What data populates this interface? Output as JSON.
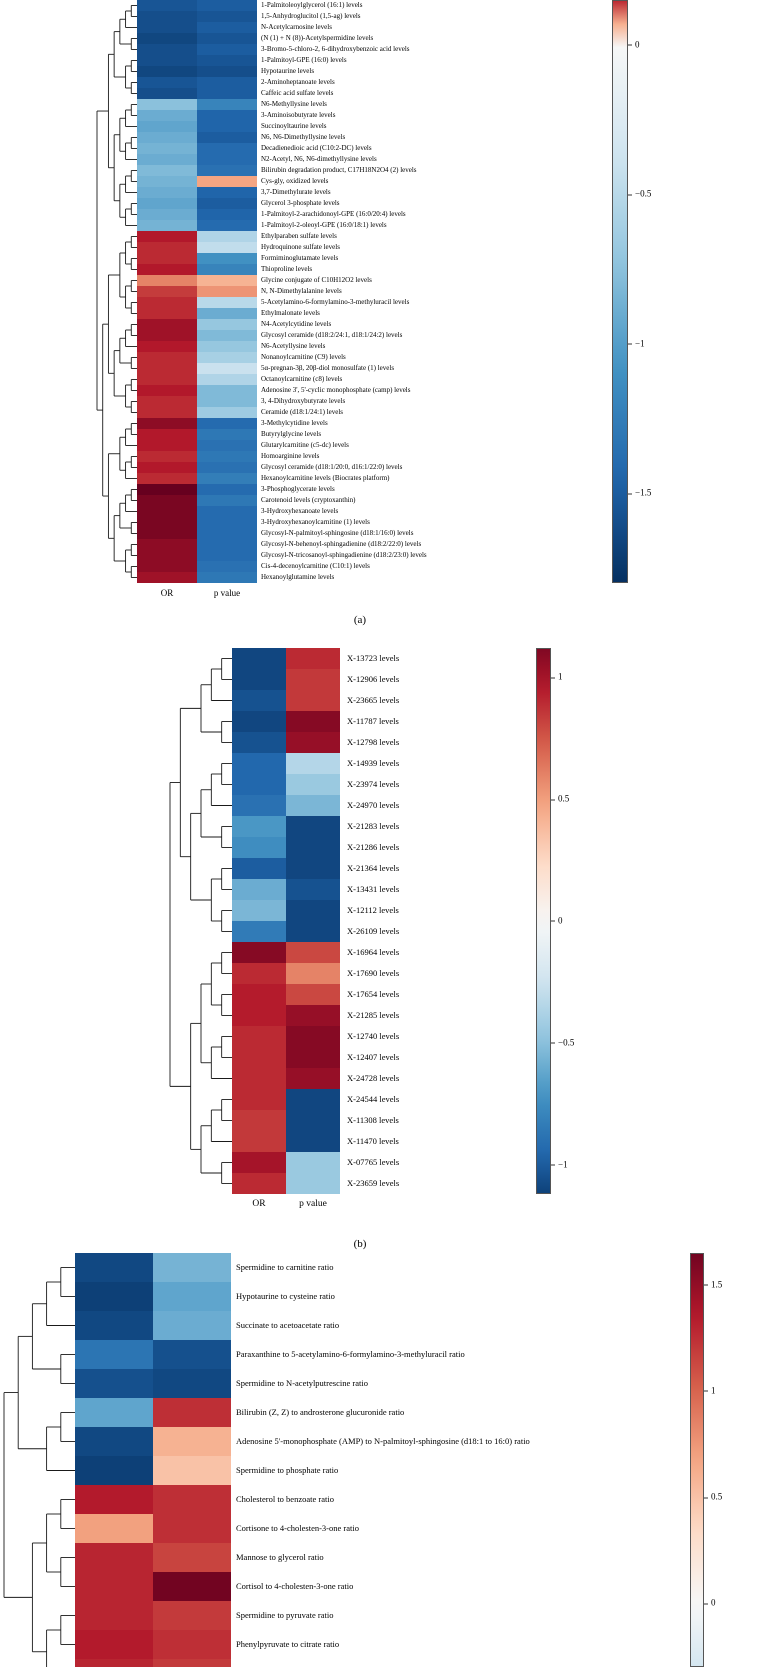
{
  "colors": {
    "diverging_stops": [
      "#053061",
      "#2166ac",
      "#4393c3",
      "#92c5de",
      "#d1e5f0",
      "#f7f7f7",
      "#fddbc7",
      "#f4a582",
      "#d6604c",
      "#b2182b",
      "#67001f"
    ],
    "background": "#ffffff"
  },
  "chart_data": [
    {
      "type": "heatmap",
      "panel": "a",
      "caption": "(a)",
      "columns": [
        "OR",
        "p value"
      ],
      "legend_position": "right",
      "colormap": {
        "pos_max": 0.2,
        "neg_max": 1.8
      },
      "colorbar": {
        "top_value": 0.15,
        "bottom_value": -1.8,
        "ticks": [
          {
            "label": "0",
            "value": 0
          },
          {
            "label": "−0.5",
            "value": -0.5
          },
          {
            "label": "−1",
            "value": -1
          },
          {
            "label": "−1.5",
            "value": -1.5
          }
        ]
      },
      "rows": [
        {
          "label": "1-Palmitoleoylglycerol (16:1) levels",
          "or": -1.55,
          "p": -1.5
        },
        {
          "label": "1,5-Anhydroglucitol (1,5-ag) levels",
          "or": -1.6,
          "p": -1.55
        },
        {
          "label": "N-Acetylcarnosine levels",
          "or": -1.6,
          "p": -1.5
        },
        {
          "label": "(N (1) + N (8))-Acetylspermidine levels",
          "or": -1.65,
          "p": -1.55
        },
        {
          "label": "3-Bromo-5-chloro-2, 6-dihydroxybenzoic acid levels",
          "or": -1.6,
          "p": -1.5
        },
        {
          "label": "1-Palmitoyl-GPE (16:0) levels",
          "or": -1.6,
          "p": -1.55
        },
        {
          "label": "Hypotaurine levels",
          "or": -1.65,
          "p": -1.6
        },
        {
          "label": "2-Aminoheptanoate levels",
          "or": -1.55,
          "p": -1.5
        },
        {
          "label": "Caffeic acid sulfate levels",
          "or": -1.6,
          "p": -1.5
        },
        {
          "label": "N6-Methyllysine levels",
          "or": -0.75,
          "p": -1.2
        },
        {
          "label": "3-Aminoisobutyrate levels",
          "or": -0.9,
          "p": -1.45
        },
        {
          "label": "Succinoyltaurine levels",
          "or": -0.95,
          "p": -1.45
        },
        {
          "label": "N6, N6-Dimethyllysine levels",
          "or": -0.9,
          "p": -1.5
        },
        {
          "label": "Decadienedioic acid (C10:2-DC) levels",
          "or": -0.85,
          "p": -1.4
        },
        {
          "label": "N2-Acetyl, N6, N6-dimethyllysine levels",
          "or": -0.9,
          "p": -1.4
        },
        {
          "label": "Bilirubin degradation product, C17H18N2O4 (2) levels",
          "or": -0.8,
          "p": -1.35
        },
        {
          "label": "Cys-gly, oxidized levels",
          "or": -0.85,
          "p": 0.08
        },
        {
          "label": "3,7-Dimethylurate levels",
          "or": -0.9,
          "p": -1.45
        },
        {
          "label": "Glycerol 3-phosphate levels",
          "or": -0.95,
          "p": -1.5
        },
        {
          "label": "1-Palmitoyl-2-arachidonoyl-GPE (16:0/20:4) levels",
          "or": -0.9,
          "p": -1.45
        },
        {
          "label": "1-Palmitoyl-2-oleoyl-GPE (16:0/18:1) levels",
          "or": -0.85,
          "p": -1.4
        },
        {
          "label": "Ethylparaben sulfate levels",
          "or": 0.16,
          "p": -0.55
        },
        {
          "label": "Hydroquinone sulfate levels",
          "or": 0.15,
          "p": -0.45
        },
        {
          "label": "Formiminoglutamate levels",
          "or": 0.15,
          "p": -1.1
        },
        {
          "label": "Thioproline levels",
          "or": 0.16,
          "p": -1.2
        },
        {
          "label": "Glycine conjugate of C10H12O2 levels",
          "or": 0.1,
          "p": 0.07
        },
        {
          "label": "N, N-Dimethylalanine levels",
          "or": 0.14,
          "p": 0.09
        },
        {
          "label": "5-Acetylamino-6-formylamino-3-methyluracil levels",
          "or": 0.15,
          "p": -0.5
        },
        {
          "label": "Ethylmalonate levels",
          "or": 0.15,
          "p": -0.9
        },
        {
          "label": "N4-Acetylcytidine levels",
          "or": 0.17,
          "p": -0.7
        },
        {
          "label": "Glycosyl ceramide (d18:2/24:1, d18:1/24:2) levels",
          "or": 0.17,
          "p": -0.8
        },
        {
          "label": "N6-Acetyllysine levels",
          "or": 0.16,
          "p": -0.7
        },
        {
          "label": "Nonanoylcarnitine (C9) levels",
          "or": 0.15,
          "p": -0.6
        },
        {
          "label": "5α-pregnan-3β, 20β-diol monosulfate (1) levels",
          "or": 0.15,
          "p": -0.4
        },
        {
          "label": "Octanoylcarnitine (c8) levels",
          "or": 0.15,
          "p": -0.55
        },
        {
          "label": "Adenosine 3', 5'-cyclic monophosphate (camp) levels",
          "or": 0.16,
          "p": -0.8
        },
        {
          "label": "3, 4-Dihydroxybutyrate levels",
          "or": 0.15,
          "p": -0.8
        },
        {
          "label": "Ceramide (d18:1/24:1) levels",
          "or": 0.15,
          "p": -0.65
        },
        {
          "label": "3-Methylcytidine levels",
          "or": 0.18,
          "p": -1.4
        },
        {
          "label": "Butyrylglycine levels",
          "or": 0.16,
          "p": -1.3
        },
        {
          "label": "Glutarylcarnitine (c5-dc) levels",
          "or": 0.16,
          "p": -1.35
        },
        {
          "label": "Homoarginine levels",
          "or": 0.15,
          "p": -1.3
        },
        {
          "label": "Glycosyl ceramide (d18:1/20:0, d16:1/22:0) levels",
          "or": 0.16,
          "p": -1.35
        },
        {
          "label": "Hexanoylcarnitine levels (Biocrates platform)",
          "or": 0.15,
          "p": -1.25
        },
        {
          "label": "3-Phosphoglycerate levels",
          "or": 0.2,
          "p": -1.4
        },
        {
          "label": "Carotenoid levels (cryptoxanthin)",
          "or": 0.19,
          "p": -1.3
        },
        {
          "label": "3-Hydroxyhexanoate levels",
          "or": 0.19,
          "p": -1.4
        },
        {
          "label": "3-Hydroxyhexanoylcarnitine (1) levels",
          "or": 0.19,
          "p": -1.4
        },
        {
          "label": "Glycosyl-N-palmitoyl-sphingosine (d18:1/16:0) levels",
          "or": 0.19,
          "p": -1.4
        },
        {
          "label": "Glycosyl-N-behenoyl-sphingadienine (d18:2/22:0) levels",
          "or": 0.18,
          "p": -1.4
        },
        {
          "label": "Glycosyl-N-tricosanoyl-sphingadienine (d18:2/23:0) levels",
          "or": 0.18,
          "p": -1.4
        },
        {
          "label": "Cis-4-decenoylcarnitine (C10:1) levels",
          "or": 0.18,
          "p": -1.35
        },
        {
          "label": "Hexanoylglutamine levels",
          "or": 0.17,
          "p": -1.3
        }
      ]
    },
    {
      "type": "heatmap",
      "panel": "b",
      "caption": "(b)",
      "columns": [
        "OR",
        "p value"
      ],
      "legend_position": "right",
      "colormap": {
        "pos_max": 1.2,
        "neg_max": 1.2
      },
      "colorbar": {
        "top_value": 1.12,
        "bottom_value": -1.12,
        "ticks": [
          {
            "label": "1",
            "value": 1
          },
          {
            "label": "0.5",
            "value": 0.5
          },
          {
            "label": "0",
            "value": 0
          },
          {
            "label": "−0.5",
            "value": -0.5
          },
          {
            "label": "−1",
            "value": -1
          }
        ]
      },
      "rows": [
        {
          "label": "X-13723 levels",
          "or": -1.1,
          "p": 0.9
        },
        {
          "label": "X-12906 levels",
          "or": -1.1,
          "p": 0.85
        },
        {
          "label": "X-23665 levels",
          "or": -1.05,
          "p": 0.85
        },
        {
          "label": "X-11787 levels",
          "or": -1.1,
          "p": 1.1
        },
        {
          "label": "X-12798 levels",
          "or": -1.05,
          "p": 1.05
        },
        {
          "label": "X-14939 levels",
          "or": -0.95,
          "p": -0.35
        },
        {
          "label": "X-23974 levels",
          "or": -0.95,
          "p": -0.45
        },
        {
          "label": "X-24970 levels",
          "or": -0.9,
          "p": -0.55
        },
        {
          "label": "X-21283 levels",
          "or": -0.7,
          "p": -1.1
        },
        {
          "label": "X-21286 levels",
          "or": -0.75,
          "p": -1.1
        },
        {
          "label": "X-21364 levels",
          "or": -1.0,
          "p": -1.1
        },
        {
          "label": "X-13431 levels",
          "or": -0.6,
          "p": -1.05
        },
        {
          "label": "X-12112 levels",
          "or": -0.55,
          "p": -1.1
        },
        {
          "label": "X-26109 levels",
          "or": -0.85,
          "p": -1.1
        },
        {
          "label": "X-16964 levels",
          "or": 1.1,
          "p": 0.8
        },
        {
          "label": "X-17690 levels",
          "or": 0.9,
          "p": 0.6
        },
        {
          "label": "X-17654 levels",
          "or": 0.95,
          "p": 0.8
        },
        {
          "label": "X-21285 levels",
          "or": 0.95,
          "p": 1.05
        },
        {
          "label": "X-12740 levels",
          "or": 0.9,
          "p": 1.1
        },
        {
          "label": "X-12407 levels",
          "or": 0.9,
          "p": 1.1
        },
        {
          "label": "X-24728 levels",
          "or": 0.9,
          "p": 1.05
        },
        {
          "label": "X-24544 levels",
          "or": 0.9,
          "p": -1.1
        },
        {
          "label": "X-11308 levels",
          "or": 0.85,
          "p": -1.1
        },
        {
          "label": "X-11470 levels",
          "or": 0.85,
          "p": -1.1
        },
        {
          "label": "X-07765 levels",
          "or": 1.0,
          "p": -0.45
        },
        {
          "label": "X-23659 levels",
          "or": 0.9,
          "p": -0.45
        }
      ]
    },
    {
      "type": "heatmap",
      "panel": "c",
      "legend_position": "right",
      "colormap": {
        "pos_max": 1.7,
        "neg_max": 1.7
      },
      "colorbar": {
        "top_value": 1.65,
        "bottom_value": -0.3,
        "ticks": [
          {
            "label": "1.5",
            "value": 1.5
          },
          {
            "label": "1",
            "value": 1
          },
          {
            "label": "0.5",
            "value": 0.5
          },
          {
            "label": "0",
            "value": 0
          }
        ]
      },
      "rows": [
        {
          "label": "Spermidine to carnitine ratio",
          "or": -1.55,
          "p": -0.8
        },
        {
          "label": "Hypotaurine to cysteine ratio",
          "or": -1.6,
          "p": -0.9
        },
        {
          "label": "Succinate to acetoacetate ratio",
          "or": -1.55,
          "p": -0.85
        },
        {
          "label": "Paraxanthine to 5-acetylamino-6-formylamino-3-methyluracil ratio",
          "or": -1.25,
          "p": -1.5
        },
        {
          "label": "Spermidine to N-acetylputrescine ratio",
          "or": -1.5,
          "p": -1.55
        },
        {
          "label": "Bilirubin (Z, Z) to androsterone glucuronide ratio",
          "or": -0.9,
          "p": 1.25
        },
        {
          "label": "Adenosine 5'-monophosphate (AMP) to N-palmitoyl-sphingosine (d18:1 to 16:0) ratio",
          "or": -1.55,
          "p": 0.6
        },
        {
          "label": "Spermidine to phosphate ratio",
          "or": -1.6,
          "p": 0.5
        },
        {
          "label": "Cholesterol to benzoate ratio",
          "or": 1.35,
          "p": 1.25
        },
        {
          "label": "Cortisone to 4-cholesten-3-one ratio",
          "or": 0.7,
          "p": 1.25
        },
        {
          "label": "Mannose to glycerol ratio",
          "or": 1.3,
          "p": 1.15
        },
        {
          "label": "Cortisol to 4-cholesten-3-one ratio",
          "or": 1.3,
          "p": 1.65
        },
        {
          "label": "Spermidine to pyruvate ratio",
          "or": 1.3,
          "p": 1.2
        },
        {
          "label": "Phenylpyruvate to citrate ratio",
          "or": 1.35,
          "p": 1.25
        },
        {
          "label": "",
          "or": 1.3,
          "p": 1.2
        }
      ]
    }
  ]
}
